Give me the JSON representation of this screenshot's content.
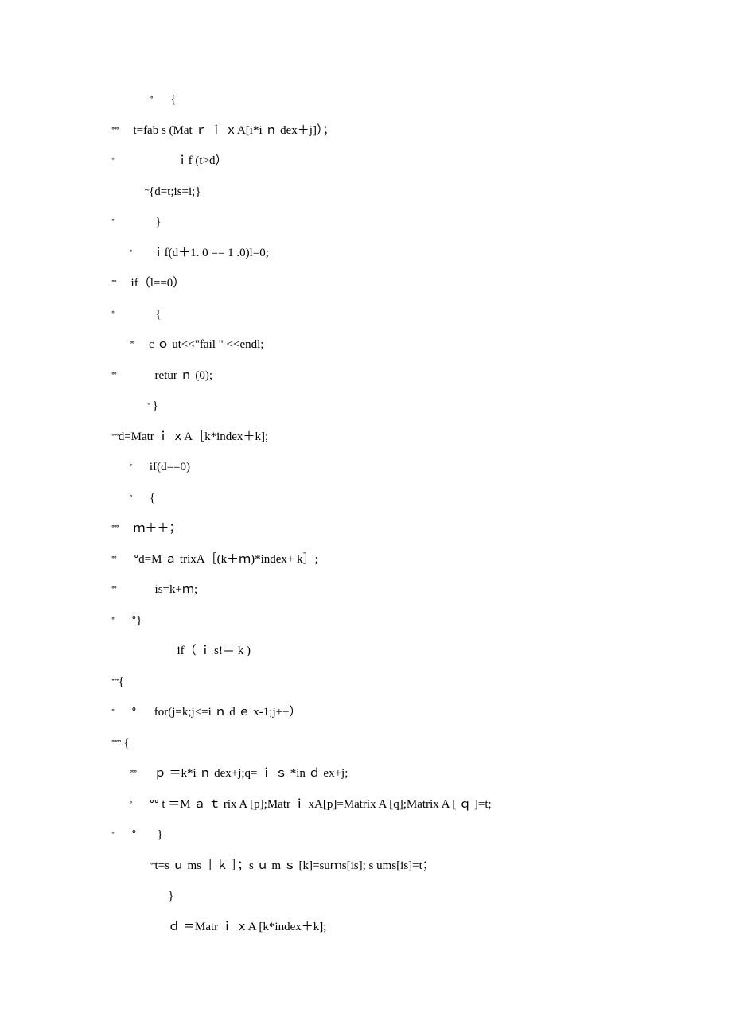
{
  "font": {
    "family": "Times New Roman, serif",
    "size_pt": 15,
    "marker_size_pt": 10,
    "color": "#000000"
  },
  "background_color": "#ffffff",
  "lines": [
    {
      "indent": "             ",
      "markers": "ᐤ",
      "text": "      {"
    },
    {
      "indent": "",
      "markers": "ᐤᐤᐤ",
      "text": "     t=fab s (Mat ｒ ｉ ｘA[i*i ｎ dex＋j]）；"
    },
    {
      "indent": "",
      "markers": "ᐤ",
      "text": "                     ｉf (t>d）"
    },
    {
      "indent": "           ",
      "markers": "ᐤᐤ",
      "text": "{d=t;is=i;}"
    },
    {
      "indent": "",
      "markers": "ᐤ",
      "text": "              }"
    },
    {
      "indent": "      ",
      "markers": "ᐤ",
      "text": "       ｉf(d＋1. 0 == 1 .0)l=0;"
    },
    {
      "indent": "",
      "markers": "ᐤᐤ",
      "text": "     if（l==0）"
    },
    {
      "indent": "",
      "markers": "ᐤ",
      "text": "              {"
    },
    {
      "indent": "      ",
      "markers": "ᐤᐤ",
      "text": "     c ｏ ut<<\"fail \" <<endl;"
    },
    {
      "indent": "",
      "markers": "ᐤᐤ",
      "text": "             retur ｎ (0);"
    },
    {
      "indent": "            ",
      "markers": "ᐤ",
      "text": " }"
    },
    {
      "indent": "",
      "markers": "ᐤᐤᐤ",
      "text": "d=Matr ｉ ｘA［k*index＋k];"
    },
    {
      "indent": "      ",
      "markers": "ᐤ",
      "text": "      if(d==0)"
    },
    {
      "indent": "      ",
      "markers": "ᐤ",
      "text": "      {"
    },
    {
      "indent": "",
      "markers": "ᐤᐤᐤ",
      "text": "     ｍ＋＋；"
    },
    {
      "indent": "",
      "markers": "ᐤᐤ",
      "text": "      ᐤd=M ａ trixA［(k＋ｍ)*index+ k］;"
    },
    {
      "indent": "",
      "markers": "ᐤᐤ",
      "text": "             is=k+ｍ;"
    },
    {
      "indent": "",
      "markers": "ᐤ",
      "text": "      ᐤ}"
    },
    {
      "indent": "                      ",
      "markers": "",
      "text": "if（ ｉ s!＝ k )"
    },
    {
      "indent": "",
      "markers": "ᐤᐤᐤ",
      "text": "{"
    },
    {
      "indent": "",
      "markers": "ᐤ",
      "text": "      ᐤ      for(j=k;j<=i ｎ d ｅ x-1;j++）"
    },
    {
      "indent": "",
      "markers": "ᐤᐤᐤᐤ",
      "text": " {"
    },
    {
      "indent": "      ",
      "markers": "ᐤᐤᐤ",
      "text": "      ｐ ＝k*i ｎ dex+j;q= ｉ ｓ *in ｄ ex+j;"
    },
    {
      "indent": "      ",
      "markers": "ᐤ",
      "text": "      ᐤᐤ t ＝M ａ ｔ rix A [p];Matr ｉ xA[p]=Matrix A [q];Matrix A [ ｑ ]=t;"
    },
    {
      "indent": "",
      "markers": "ᐤ",
      "text": "      ᐤ       }"
    },
    {
      "indent": "             ",
      "markers": "ᐤᐤ",
      "text": "t=s ｕ ms［ ｋ ］；s ｕ m ｓ [k]=suｍs[is]; s ums[is]=t；"
    },
    {
      "indent": "                   ",
      "markers": "",
      "text": "}"
    },
    {
      "indent": "                   ",
      "markers": "",
      "text": "ｄ ＝Matr ｉ ｘA [k*index＋k];"
    }
  ]
}
